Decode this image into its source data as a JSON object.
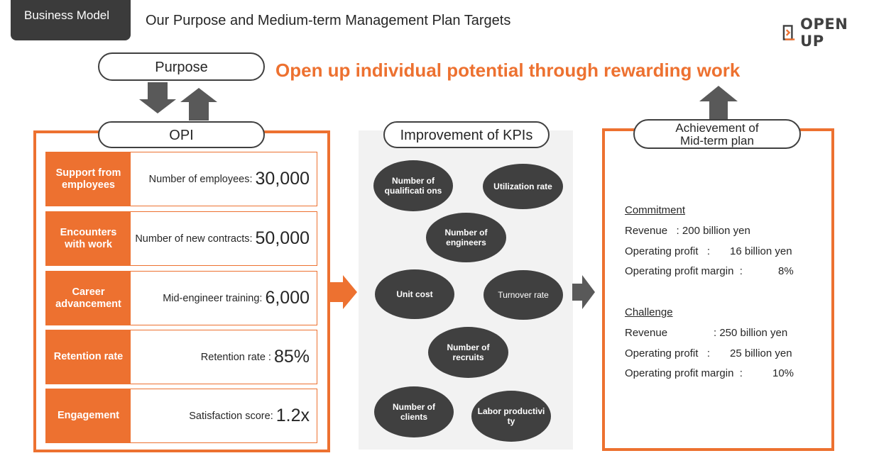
{
  "header": {
    "tag": "Business Model",
    "title": "Our Purpose and Medium-term Management Plan Targets",
    "logo_text": "OPEN UP"
  },
  "purpose": {
    "label": "Purpose",
    "statement": "Open up individual potential through rewarding work"
  },
  "opi": {
    "label": "OPI",
    "rows": [
      {
        "label": "Support from employees",
        "metric": "Number of employees:",
        "value": "30,000"
      },
      {
        "label": "Encounters with work",
        "metric": "Number of new contracts:",
        "value": "50,000"
      },
      {
        "label": "Career advancement",
        "metric": "Mid-engineer training:",
        "value": "6,000"
      },
      {
        "label": "Retention rate",
        "metric": "Retention rate :",
        "value": "85%"
      },
      {
        "label": "Engagement",
        "metric": "Satisfaction score:",
        "value": "1.2x"
      }
    ]
  },
  "kpi": {
    "label": "Improvement of KPIs",
    "items": [
      "Number of qualificati ons",
      "Utilization rate",
      "Number of engineers",
      "Unit cost",
      "Turnover rate",
      "Number of recruits",
      "Number of clients",
      "Labor productivi ty"
    ]
  },
  "achievement": {
    "label_line1": "Achievement of",
    "label_line2": "Mid-term plan",
    "commitment": {
      "heading": "Commitment",
      "revenue": "Revenue   : 200 billion yen",
      "op_label": "Operating profit   :",
      "op_value": "16 billion yen",
      "margin_label": "Operating profit margin  :",
      "margin_value": "8%"
    },
    "challenge": {
      "heading": "Challenge",
      "revenue_label": "Revenue",
      "revenue_value": ": 250 billion yen",
      "op_label": "Operating profit   :",
      "op_value": "25 billion yen",
      "margin_label": "Operating profit margin  :",
      "margin_value": "10%"
    }
  },
  "colors": {
    "accent": "#ed7130",
    "dark": "#404040",
    "panel_gray": "#f2f2f2"
  }
}
